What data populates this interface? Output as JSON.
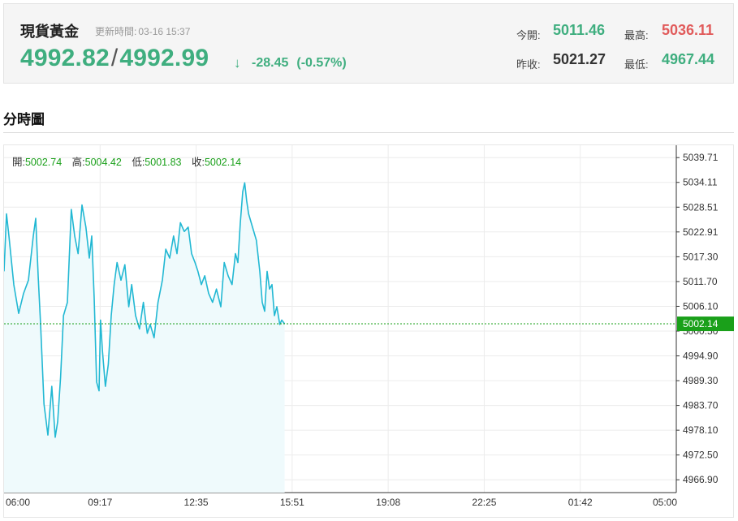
{
  "header": {
    "name": "現貨黃金",
    "update_label": "更新時間:",
    "update_time": "03-16 15:37",
    "bid": "4992.82",
    "slash": "/",
    "ask": "4992.99",
    "direction_icon": "down-arrow-icon",
    "direction_glyph": "↓",
    "change": "-28.45",
    "change_pct": "(-0.57%)",
    "open_label": "今開:",
    "open_value": "5011.46",
    "high_label": "最高:",
    "high_value": "5036.11",
    "prev_close_label": "昨收:",
    "prev_close_value": "5021.27",
    "low_label": "最低:",
    "low_value": "4967.44"
  },
  "section": {
    "title": "分時圖"
  },
  "ohlc": {
    "open_label": "開:",
    "open": "5002.74",
    "high_label": "高:",
    "high": "5004.42",
    "low_label": "低:",
    "low": "5001.83",
    "close_label": "收:",
    "close": "5002.14"
  },
  "colors": {
    "up": "#3fae7f",
    "down_red": "#e15b5b",
    "line": "#22b8d3",
    "last_price": "#1aa01a",
    "area": "#effafc"
  },
  "chart_data": {
    "type": "area",
    "title": "",
    "xlabel": "",
    "ylabel": "",
    "x_ticks": [
      "06:00",
      "09:17",
      "12:35",
      "15:51",
      "19:08",
      "22:25",
      "01:42",
      "05:00"
    ],
    "y_ticks": [
      "5039.71",
      "5034.11",
      "5028.51",
      "5022.91",
      "5017.30",
      "5011.70",
      "5006.10",
      "5000.50",
      "4994.90",
      "4989.30",
      "4983.70",
      "4978.10",
      "4972.50",
      "4966.90"
    ],
    "ylim": [
      4964.0,
      5042.5
    ],
    "last_price": 5002.14,
    "last_price_label": "5002.14",
    "grid": true,
    "series": [
      {
        "x": [
          "06:00",
          "06:05",
          "06:10",
          "06:20",
          "06:30",
          "06:40",
          "06:50",
          "07:00",
          "07:05",
          "07:10",
          "07:15",
          "07:22",
          "07:30",
          "07:38",
          "07:45",
          "07:50",
          "07:56",
          "08:02",
          "08:10",
          "08:18",
          "08:25",
          "08:32",
          "08:40",
          "08:48",
          "08:55",
          "09:00",
          "09:05",
          "09:10",
          "09:15",
          "09:18",
          "09:22",
          "09:28",
          "09:34",
          "09:40",
          "09:46",
          "09:52",
          "10:00",
          "10:08",
          "10:16",
          "10:22",
          "10:30",
          "10:38",
          "10:46",
          "10:54",
          "11:00",
          "11:08",
          "11:16",
          "11:25",
          "11:32",
          "11:40",
          "11:48",
          "11:55",
          "12:02",
          "12:10",
          "12:18",
          "12:25",
          "12:32",
          "12:38",
          "12:45",
          "12:52",
          "13:00",
          "13:08",
          "13:16",
          "13:25",
          "13:32",
          "13:40",
          "13:48",
          "13:55",
          "14:00",
          "14:05",
          "14:10",
          "14:14",
          "14:18",
          "14:22",
          "14:30",
          "14:38",
          "14:45",
          "14:50",
          "14:55",
          "15:00",
          "15:05",
          "15:10",
          "15:15",
          "15:20",
          "15:26",
          "15:30",
          "15:36"
        ],
        "values": [
          5014.0,
          5027.0,
          5022.0,
          5011.0,
          5004.5,
          5009.0,
          5012.0,
          5022.0,
          5026.0,
          5013.0,
          5002.0,
          4984.0,
          4977.0,
          4988.0,
          4976.5,
          4980.0,
          4990.0,
          5004.0,
          5007.0,
          5028.0,
          5022.0,
          5018.0,
          5029.0,
          5024.0,
          5017.0,
          5022.0,
          5008.0,
          4989.0,
          4987.0,
          5003.0,
          4996.0,
          4988.0,
          4993.0,
          5004.0,
          5011.0,
          5016.0,
          5012.0,
          5015.5,
          5006.0,
          5011.0,
          5004.0,
          5001.0,
          5007.0,
          5000.0,
          5002.0,
          4999.0,
          5007.0,
          5012.0,
          5019.0,
          5017.0,
          5022.0,
          5018.0,
          5025.0,
          5023.0,
          5024.0,
          5018.0,
          5016.0,
          5014.0,
          5011.0,
          5013.0,
          5009.0,
          5007.0,
          5010.0,
          5006.0,
          5016.0,
          5013.0,
          5011.0,
          5018.0,
          5016.0,
          5025.0,
          5032.0,
          5034.0,
          5030.0,
          5027.0,
          5024.0,
          5021.0,
          5014.0,
          5007.0,
          5005.0,
          5014.0,
          5010.0,
          5011.0,
          5004.0,
          5006.0,
          5002.0,
          5003.0,
          5002.14
        ]
      }
    ]
  }
}
